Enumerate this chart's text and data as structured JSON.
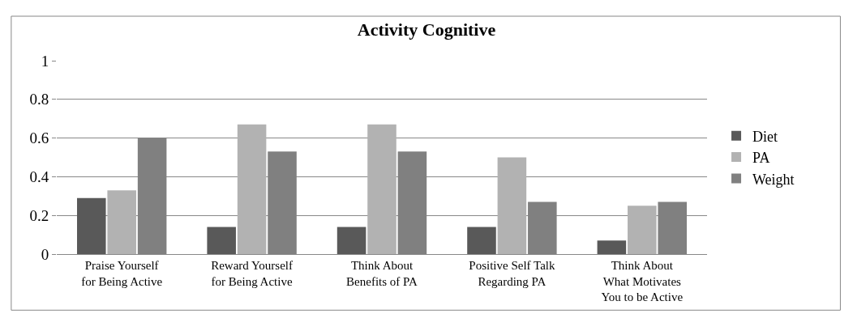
{
  "chart_data": {
    "type": "bar",
    "title": "Activity Cognitive",
    "categories": [
      "Praise Yourself\nfor Being Active",
      "Reward Yourself\nfor Being Active",
      "Think About\nBenefits of PA",
      "Positive Self Talk\nRegarding PA",
      "Think About\nWhat Motivates\nYou to be Active"
    ],
    "series": [
      {
        "name": "Diet",
        "color": "#595959",
        "values": [
          0.29,
          0.14,
          0.14,
          0.14,
          0.07
        ]
      },
      {
        "name": "PA",
        "color": "#b2b2b2",
        "values": [
          0.33,
          0.67,
          0.67,
          0.5,
          0.25
        ]
      },
      {
        "name": "Weight",
        "color": "#808080",
        "values": [
          0.6,
          0.53,
          0.53,
          0.27,
          0.27
        ]
      }
    ],
    "ylim": [
      0,
      1
    ],
    "yticks": [
      0,
      0.2,
      0.4,
      0.6,
      0.8,
      1
    ],
    "grid": "y",
    "legend": "right"
  }
}
